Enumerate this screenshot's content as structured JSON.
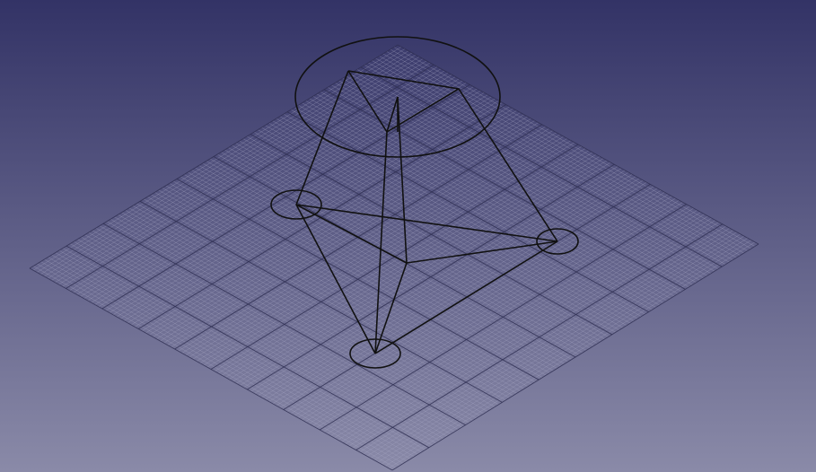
{
  "view": {
    "projection": "isometric",
    "background": {
      "top": "#333366",
      "bottom": "#8a8aa8"
    },
    "grid": {
      "visible": true,
      "major_cells": 10,
      "minor_per_major": 10,
      "minor_color": "#a9a9c6",
      "major_color": "#2f2f52"
    },
    "wireframe_color": "#111111"
  }
}
